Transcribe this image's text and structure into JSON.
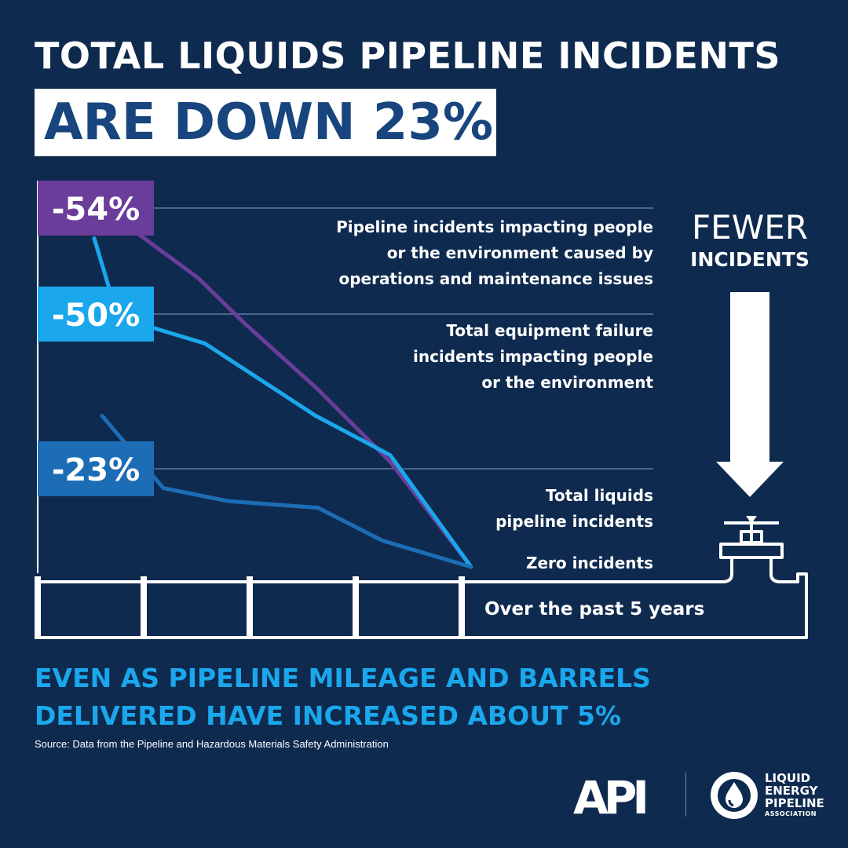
{
  "headline": {
    "line1": "TOTAL LIQUIDS PIPELINE INCIDENTS",
    "line2": "ARE DOWN 23%"
  },
  "fewer": {
    "line1": "FEWER",
    "line2": "INCIDENTS"
  },
  "chart_data": {
    "type": "line",
    "x": [
      1,
      2,
      3,
      4,
      5,
      6
    ],
    "series": [
      {
        "name": "Pipeline incidents impacting people or the environment caused by operations and maintenance issues",
        "values": [
          -3,
          -16,
          -27,
          -37,
          -44,
          -54
        ],
        "badge": "-54%",
        "color": "#6a3d9a",
        "label_lines": [
          "Pipeline incidents impacting people",
          "or the environment caused by",
          "operations and maintenance issues"
        ]
      },
      {
        "name": "Total equipment failure incidents impacting people or the environment",
        "values": [
          -7,
          -17,
          -23,
          -34,
          -38,
          -50
        ],
        "badge": "-50%",
        "color": "#1aa7ec",
        "label_lines": [
          "Total equipment failure",
          "incidents impacting people",
          "or the environment"
        ]
      },
      {
        "name": "Total liquids pipeline incidents",
        "values": [
          -1,
          -4,
          -9,
          -10,
          -12,
          -23
        ],
        "badge": "-23%",
        "color": "#1c6db5",
        "label_lines": [
          "Total liquids",
          "pipeline incidents"
        ]
      }
    ],
    "baseline_label": "Zero incidents",
    "xlabel": "Over the past 5 years"
  },
  "subhead": {
    "line1": "EVEN AS PIPELINE MILEAGE AND BARRELS",
    "line2": "DELIVERED HAVE INCREASED ABOUT 5%"
  },
  "source": "Source: Data from the Pipeline and Hazardous Materials Safety Administration",
  "logos": {
    "api": "API",
    "lepa": [
      "LIQUID",
      "ENERGY",
      "PIPELINE",
      "ASSOCIATION"
    ]
  }
}
